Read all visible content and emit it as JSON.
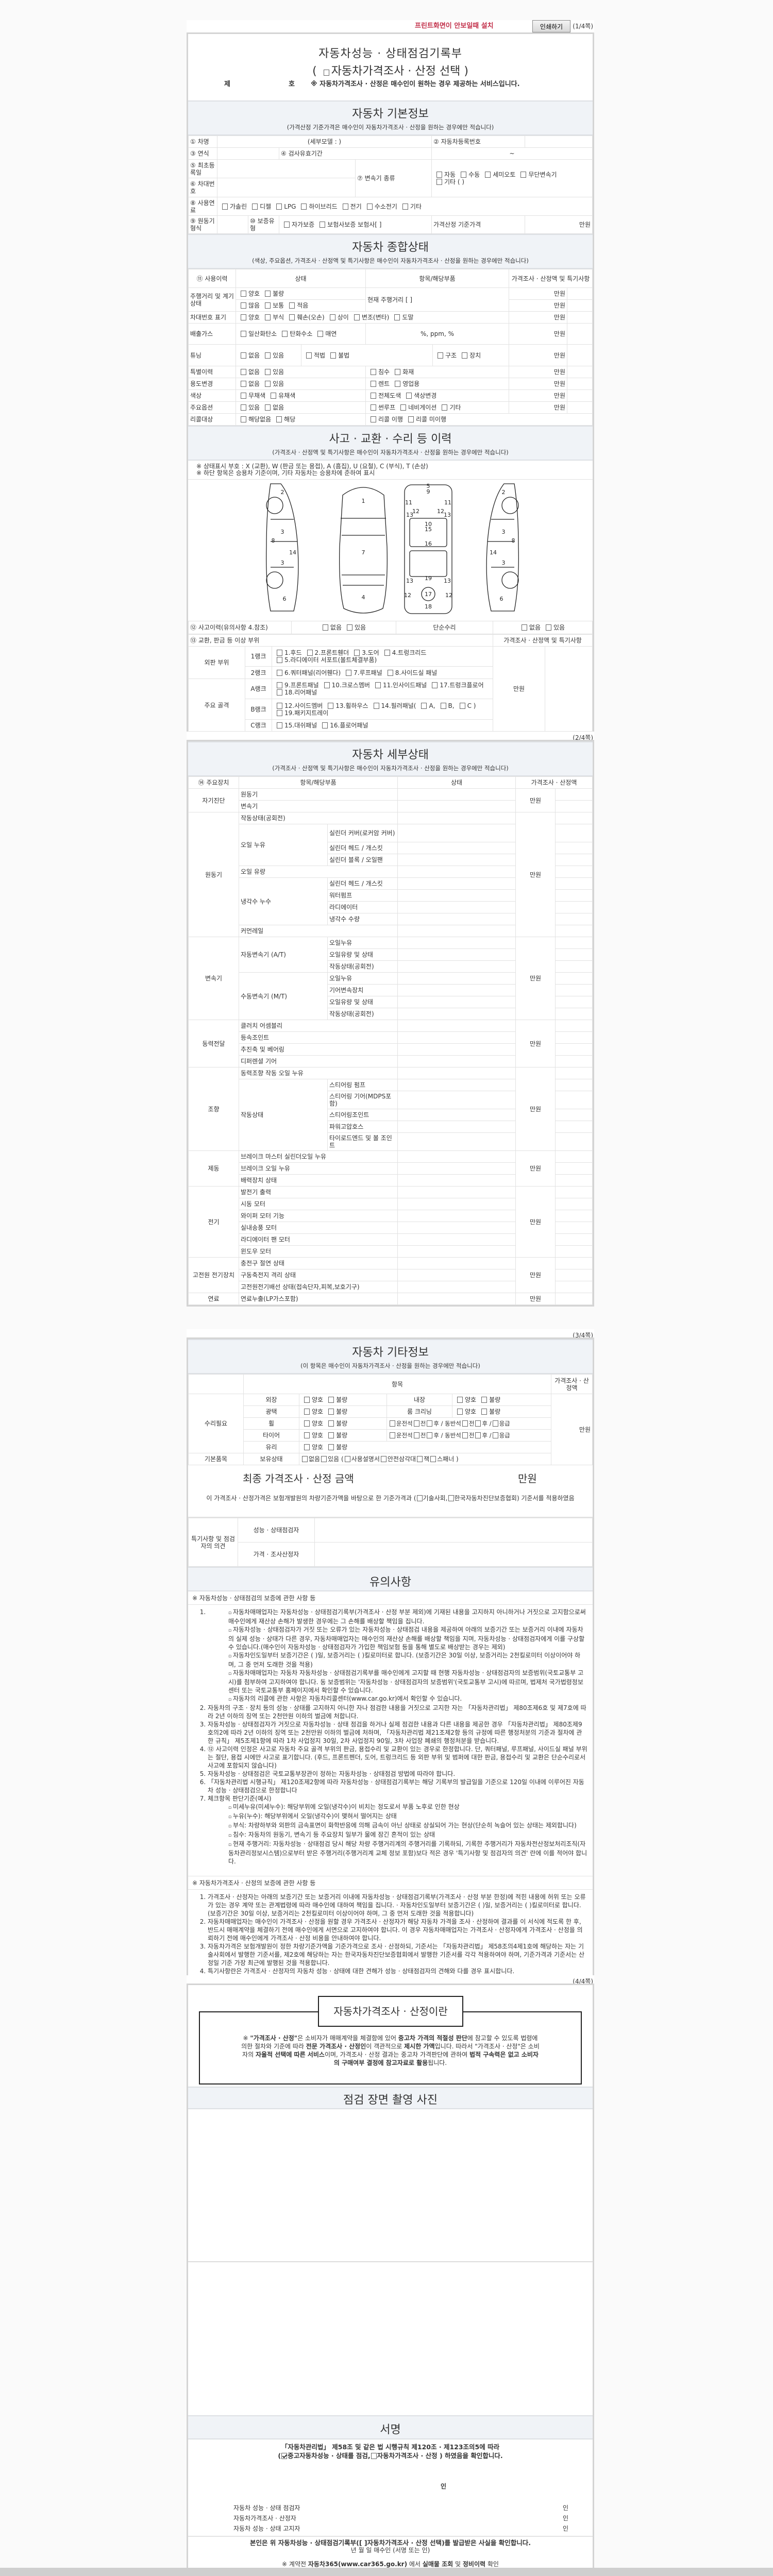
{
  "topbar": {
    "notice": "프린트화면이 안보일때 설치",
    "print_button": "인쇄하기",
    "page": "(1/4쪽)"
  },
  "title": {
    "line1": "자동차성능 · 상태점검기록부",
    "open": "(",
    "line2": "자동차가격조사 · 산정 선택",
    "close": ")",
    "no_prefix": "제",
    "no_suffix": "호",
    "note": "※ 자동차가격조사 · 산정은 매수인이 원하는 경우 제공하는 서비스입니다."
  },
  "basic": {
    "title": "자동차 기본정보",
    "subtitle": "(가격산정 기준가격은 매수인이 자동차가격조사 · 산정을 원하는 경우에만 적습니다)",
    "car_name": "① 차명",
    "sub_model": "(세부모델 :                )",
    "reg_no": "② 자동차등록번호",
    "year": "③ 연식",
    "inspect_valid": "④ 검사유효기간",
    "tilde": "~",
    "first_reg": "⑤ 최초등록일",
    "vin": "⑥ 차대번호",
    "transmission": "⑦ 변속기 종류",
    "trans_opts": [
      "자동",
      "수동",
      "세미오토",
      "무단변속기",
      "기타 (              )"
    ],
    "fuel": "⑧ 사용연료",
    "fuel_opts": [
      "가솔린",
      "디젤",
      "LPG",
      "하이브리드",
      "전기",
      "수소전기",
      "기타"
    ],
    "engine": "⑨ 원동기형식",
    "warranty": "⑩ 보증유형",
    "warranty_opts": [
      "자가보증",
      "보험사보증 보험사[              ]"
    ],
    "base_price": "가격산정 기준가격",
    "unit": "만원"
  },
  "overall": {
    "title": "자동차 종합상태",
    "subtitle": "(색상, 주요옵션, 가격조사 · 산정액 및 특기사항은 매수인이 자동차가격조사 · 산정을 원하는 경우에만 적습니다)",
    "h_history": "⑪ 사용이력",
    "h_status": "상태",
    "h_item": "항목/해당부품",
    "h_price": "가격조사 · 산정액 및 특기사항",
    "unit": "만원",
    "mileage": {
      "label": "주행거리 및 계기상태",
      "opts_a": [
        "양호",
        "불량"
      ],
      "opts_b": [
        "많음",
        "보통",
        "적음"
      ],
      "current": "현재 주행거리 [                    ]"
    },
    "vin_mark": {
      "label": "차대번호 표기",
      "opts": [
        "양호",
        "부식",
        "훼손(오손)",
        "상이",
        "변조(변타)",
        "도말"
      ]
    },
    "emission": {
      "label": "배출가스",
      "opts": [
        "일산화탄소",
        "탄화수소",
        "매연"
      ],
      "values": "%,        ppm,        %"
    },
    "tuning": {
      "label": "튜닝",
      "opts": [
        "없음",
        "있음"
      ],
      "opts_b": [
        "적법",
        "불법"
      ],
      "opts_c": [
        "구조",
        "장치"
      ]
    },
    "special": {
      "label": "특별이력",
      "opts": [
        "없음",
        "있음"
      ],
      "opts_b": [
        "침수",
        "화재"
      ]
    },
    "usage": {
      "label": "용도변경",
      "opts": [
        "없음",
        "있음"
      ],
      "opts_b": [
        "렌트",
        "영업용"
      ]
    },
    "color": {
      "label": "색상",
      "opts": [
        "무채색",
        "유채색"
      ],
      "opts_b": [
        "전체도색",
        "색상변경"
      ]
    },
    "options": {
      "label": "주요옵션",
      "opts": [
        "있음",
        "없음"
      ],
      "opts_b": [
        "썬루프",
        "네비게이션",
        "기타"
      ]
    },
    "recall": {
      "label": "리콜대상",
      "opts": [
        "해당없음",
        "해당"
      ],
      "opts_b": [
        "리콜 이행",
        "리콜 미이행"
      ]
    }
  },
  "accident": {
    "title": "사고 · 교환 · 수리 등 이력",
    "subtitle": "(가격조사 · 산정액 및 특기사항은 매수인이 자동차가격조사 · 산정을 원하는 경우에만 적습니다)",
    "legend1": "※ 상태표시 부호 : X (교환), W (판금 또는 용접), A (흠집), U (요철), C (부식), T (손상)",
    "legend2": "※ 하단 항목은 승용차 기준이며, 기타 자동차는 승용차에 준하여 표시",
    "part_numbers": [
      "1",
      "2",
      "3",
      "4",
      "5",
      "6",
      "7",
      "8",
      "9",
      "10",
      "11",
      "12",
      "13",
      "14",
      "15",
      "16",
      "17",
      "18",
      "19"
    ],
    "history": "⑫ 사고이력(유의사항 4.참조)",
    "history_opts": [
      "없음",
      "있음"
    ],
    "simple": "단순수리",
    "simple_opts": [
      "없음",
      "있음"
    ],
    "parts_label": "⑬ 교환, 판금 등 이상 부위",
    "parts_price": "가격조사 · 산정액 및 특기사항",
    "unit": "만원",
    "outer": "외판 부위",
    "frame": "주요 골격",
    "ranks": [
      {
        "rank": "1랭크",
        "opts": [
          "1.후드",
          "2.프론트휀더",
          "3.도어",
          "4.트렁크리드",
          "5.라디에이터 서포트(볼트체결부품)"
        ]
      },
      {
        "rank": "2랭크",
        "opts": [
          "6.쿼터패널(리어휀다)",
          "7.루프패널",
          "8.사이드실 패널"
        ]
      },
      {
        "rank": "A랭크",
        "opts": [
          "9.프론트패널",
          "10.크로스멤버",
          "11.인사이드패널",
          "17.트렁크플로어",
          "18.리어패널"
        ]
      },
      {
        "rank": "B랭크",
        "opts": [
          "12.사이드멤버",
          "13.휠하우스",
          "14.필러패널(",
          "A,",
          "B,",
          "C )",
          "19.패키지트레이"
        ]
      },
      {
        "rank": "C랭크",
        "opts": [
          "15.대쉬패널",
          "16.플로어패널"
        ]
      }
    ]
  },
  "page2": "(2/4쪽)",
  "detail": {
    "title": "자동차 세부상태",
    "subtitle": "(가격조사 · 산정액 및 특기사항은 매수인이 자동차가격조사 · 산정을 원하는 경우에만 적습니다)",
    "h_device": "⑭ 주요장치",
    "h_item": "항목/해당부품",
    "h_status": "상태",
    "h_price": "가격조사 · 산정액",
    "unit": "만원",
    "groups": [
      {
        "name": "자기진단",
        "rows": [
          {
            "item": "원동기",
            "opts": [
              "양호",
              "불량"
            ]
          },
          {
            "item": "변속기",
            "opts": [
              "양호",
              "불량"
            ]
          }
        ]
      },
      {
        "name": "원동기",
        "rows": [
          {
            "item": "작동상태(공회전)",
            "opts": [
              "양호",
              "불량"
            ]
          },
          {
            "item": "오일 누유",
            "subs": [
              {
                "item": "실린더 커버(로커암 커버)",
                "tall": true,
                "opts": [
                  "없음",
                  "미세누유",
                  "누유"
                ]
              },
              {
                "item": "실린더 헤드 / 개스킷",
                "opts": [
                  "없음",
                  "미세누유",
                  "누유"
                ]
              },
              {
                "item": "실린더 블록 / 오일팬",
                "opts": [
                  "없음",
                  "미세누유",
                  "누유"
                ]
              }
            ]
          },
          {
            "item": "오일 유량",
            "opts": [
              "적정",
              "부족"
            ]
          },
          {
            "item": "냉각수 누수",
            "subs": [
              {
                "item": "실린더 헤드 / 개스킷",
                "opts": [
                  "없음",
                  "미세누수",
                  "누수"
                ]
              },
              {
                "item": "워터펌프",
                "opts": [
                  "없음",
                  "미세누수",
                  "누수"
                ]
              },
              {
                "item": "라디에이터",
                "opts": [
                  "없음",
                  "미세누수",
                  "누수"
                ]
              },
              {
                "item": "냉각수 수량",
                "opts": [
                  "적정",
                  "부족"
                ]
              }
            ]
          },
          {
            "item": "커먼레일",
            "opts": [
              "양호",
              "불량"
            ]
          }
        ]
      },
      {
        "name": "변속기",
        "rows": [
          {
            "item": "자동변속기 (A/T)",
            "subs": [
              {
                "item": "오일누유",
                "opts": [
                  "없음",
                  "미세누유",
                  "누유"
                ]
              },
              {
                "item": "오일유량 및 상태",
                "opts": [
                  "적정",
                  "부족",
                  "과다"
                ]
              },
              {
                "item": "작동상태(공회전)",
                "opts": [
                  "양호",
                  "불량"
                ]
              }
            ]
          },
          {
            "item": "수동변속기 (M/T)",
            "subs": [
              {
                "item": "오일누유",
                "opts": [
                  "없음",
                  "미세누유",
                  "누유"
                ]
              },
              {
                "item": "기어변속장치",
                "opts": [
                  "양호",
                  "불량"
                ]
              },
              {
                "item": "오일유량 및 상태",
                "opts": [
                  "적정",
                  "부족",
                  "과다"
                ]
              },
              {
                "item": "작동상태(공회전)",
                "opts": [
                  "양호",
                  "불량"
                ]
              }
            ]
          }
        ]
      },
      {
        "name": "동력전달",
        "rows": [
          {
            "item": "클러치 어셈블리",
            "opts": [
              "양호",
              "불량"
            ]
          },
          {
            "item": "등속조인트",
            "opts": [
              "양호",
              "불량"
            ]
          },
          {
            "item": "추진축 및 베어링",
            "opts": [
              "양호",
              "불량"
            ]
          },
          {
            "item": "디퍼렌셜 기어",
            "opts": [
              "양호",
              "불량"
            ]
          }
        ]
      },
      {
        "name": "조향",
        "rows": [
          {
            "item": "동력조향 작동 오일 누유",
            "opts": [
              "없음",
              "미세누유",
              "누유"
            ]
          },
          {
            "item": "작동상태",
            "subs": [
              {
                "item": "스티어링 펌프",
                "opts": [
                  "양호",
                  "불량"
                ]
              },
              {
                "item": "스티어링 기어(MDPS포함)",
                "tall": true,
                "opts": [
                  "양호",
                  "불량"
                ]
              },
              {
                "item": "스티어링조인트",
                "opts": [
                  "양호",
                  "불량"
                ]
              },
              {
                "item": "파워고압호스",
                "opts": [
                  "양호",
                  "불량"
                ]
              },
              {
                "item": "타이로드엔드 및 볼 조인트",
                "tall": true,
                "opts": [
                  "양호",
                  "불량"
                ]
              }
            ]
          }
        ]
      },
      {
        "name": "제동",
        "rows": [
          {
            "item": "브레이크 마스터 실린더오일 누유",
            "opts": [
              "없음",
              "미세누유",
              "누유"
            ]
          },
          {
            "item": "브레이크 오일 누유",
            "opts": [
              "없음",
              "미세누유",
              "누유"
            ]
          },
          {
            "item": "배력장치 상태",
            "opts": [
              "양호",
              "불량"
            ]
          }
        ]
      },
      {
        "name": "전기",
        "rows": [
          {
            "item": "발전기 출력",
            "opts": [
              "양호",
              "불량"
            ]
          },
          {
            "item": "시동 모터",
            "opts": [
              "양호",
              "불량"
            ]
          },
          {
            "item": "와이퍼 모터 기능",
            "opts": [
              "양호",
              "불량"
            ]
          },
          {
            "item": "실내송풍 모터",
            "opts": [
              "양호",
              "불량"
            ]
          },
          {
            "item": "라디에이터 팬 모터",
            "opts": [
              "양호",
              "불량"
            ]
          },
          {
            "item": "윈도우 모터",
            "opts": [
              "양호",
              "불량"
            ]
          }
        ]
      },
      {
        "name": "고전원 전기장치",
        "rows": [
          {
            "item": "충전구 절연 상태",
            "opts": [
              "양호",
              "불량"
            ]
          },
          {
            "item": "구동축전지 격리 상태",
            "opts": [
              "양호",
              "불량"
            ]
          },
          {
            "item": "고전원전기배선 상태(접속단자,피복,보호기구)",
            "opts": [
              "양호",
              "불량"
            ]
          }
        ]
      },
      {
        "name": "연료",
        "rows": [
          {
            "item": "연료누출(LP가스포함)",
            "opts": [
              "없음",
              "있음"
            ]
          }
        ]
      }
    ]
  },
  "page3": "(3/4쪽)",
  "other": {
    "title": "자동차 기타정보",
    "subtitle": "(이 항목은 매수인이 자동차가격조사 · 산정을 원하는 경우에만 적습니다)",
    "h_item": "항목",
    "h_price": "가격조사 · 산정액",
    "repair": "수리필요",
    "basic_items": "기본품목",
    "unit": "만원",
    "exterior": "외장",
    "interior": "내장",
    "gloss": "광택",
    "room": "룸 크리닝",
    "wheel": "휠",
    "tire": "타이어",
    "glass": "유리",
    "holding": "보유상태",
    "good_bad": [
      "양호",
      "불량"
    ],
    "pos": [
      "운전석",
      "전",
      "후 / 동반석",
      "전",
      "후 /",
      "응급"
    ],
    "holding_opts": [
      "없음",
      "있음 (",
      "사용설명서",
      "안전삼각대",
      "잭",
      "스패너 )"
    ],
    "final_label": "최종 가격조사 · 산정 금액",
    "final_unit": "만원",
    "basis_pre": "이 가격조사 · 산정가격은 보험개발원의 차량기준가액을 바탕으로 한 기준가격과 (",
    "basis_a": "기술사회,",
    "basis_b": "한국자동차진단보증협회) 기준서를 적용하였음",
    "opinion": "특기사항 및 점검자의 의견",
    "inspector": "성능 · 상태점검자",
    "appraiser": "가격 · 조사산정자"
  },
  "caution": {
    "title": "유의사항",
    "sec1": "※ 자동차성능 · 상태점검의 보증에 관한 사항 등",
    "item1_bullets": [
      "자동차매매업자는 자동차성능 · 상태점검기록부(가격조사 · 산정 부분 제외)에 기재된 내용을 고지하지 아니하거나 거짓으로 고지함으로써 매수인에게 재산상 손해가 발생한 경우에는 그 손해를 배상할 책임을 집니다.",
      "자동차성능 · 상태점검자가 거짓 또는 오류가 있는 자동차성능 · 상태점검 내용을 제공하여 아래의 보증기간 또는 보증거리 이내에 자동차의 실제 성능 · 상태가 다른 경우, 자동차매매업자는 매수인의 재산상 손해를 배상할 책임을 지며, 자동차성능 · 상태점검자에게 이를 구상할 수 있습니다.(매수인이 자동차성능 · 상태점검자가 가입한 책임보험 등을 통해 별도로 배상받는 경우는 제외)",
      "자동차인도일부터 보증기간은 (      )일, 보증거리는 (      )킬로미터로 합니다. (보증기간은 30일 이상, 보증거리는 2천킬로미터 이상이어야 하며, 그 중 먼저 도래한 것을 적용)",
      "자동차매매업자는 자동차 자동차성능 · 상태점검기록부를 매수인에게 고지할 때 현행 자동차성능 · 상태점검자의 보증범위(국토교통부 고시)를 첨부하여 고지하여야 합니다. 동 보증범위는 '자동차성능 · 상태점검자의 보증범위'(국토교통부 고시)에 따르며, 법제처 국가법령정보센터 또는 국토교통부 홈페이지에서 확인할 수 있습니다.",
      "자동차의 리콜에 관한 사항은 자동차리콜센터(www.car.go.kr)에서 확인할 수 있습니다."
    ],
    "items1": [
      "자동차의 구조 · 장치 등의 성능 · 상태를 고지하지 아니한 자나 점검한 내용을 거짓으로 고지한 자는 「자동차관리법」 제80조제6호 및 제7호에 따라 2년 이하의 징역 또는 2천만원 이하의 벌금에 처합니다.",
      "자동차성능 · 상태점검자가 거짓으로 자동차성능 · 상태 점검을 하거나 실제 점검한 내용과 다른 내용을 제공한 경우 「자동차관리법」 제80조제9호의2에 따라 2년 이하의 징역 또는 2천만원 이하의 벌금에 처하며, 「자동차관리법 제21조제2항 등의 규정에 따른 행정처분의 기준과 절차에 관한 규칙」 제5조제1항에 따라 1차 사업정지 30일, 2차 사업정지 90일, 3차 사업장 폐쇄의 행정처분을 받습니다.",
      "⑫ 사고이력 인정은 사고로 자동차 주요 골격 부위의 판금, 용접수리 및 교환이 있는 경우로 한정합니다. 단, 쿼터패널, 루프패널, 사이드실 패널 부위는 절단, 용접 시에만 사고로 표기합니다. (후드, 프론트펜더, 도어, 트렁크리드 등 외판 부위 및 범퍼에 대한 판금, 용접수리 및 교환은 단순수리로서 사고에 포함되지 않습니다)",
      "자동차성능 · 상태점검은 국토교통부장관이 정하는 자동차성능 · 상태점검 방법에 따라야 합니다.",
      "「자동차관리법 시행규칙」 제120조제2항에 따라 자동차성능 · 상태점검기록부는 해당 기록부의 발급일을 기준으로 120일 이내에 이루어진 자동차 성능 · 상태점검으로 한정합니다",
      "체크항목 판단기준(예시)"
    ],
    "item7_bullets": [
      "미세누유(미세누수): 해당부위에 오일(냉각수)이 비치는 정도로서 부품 노후로 인한 현상",
      "누유(누수): 해당부위에서 오일(냉각수)이 맺혀서 떨어지는 상태",
      "부식: 차량하부와 외판의 금속표면이 화학반응에 의해 금속이 아닌 상태로 상실되어 가는 현상(단순히 녹슬어 있는 상태는 제외합니다)",
      "침수: 자동차의 원동기, 변속기 등 주요장치 일부가 물에 잠긴 흔적이 있는 상태",
      "현재 주행거리: 자동차성능 · 상태점검 당시 해당 차량 주행거리계의 주행거리를 기록하되, 기록한 주행거리가 자동차전산정보처리조직(자동차관리정보시스템)으로부터 받은 주행거리(주행거리계 교체 정보 포함)보다 적은 경우 '특기사항 및 점검자의 의견' 란에 이를 적어야 합니다."
    ],
    "sec2": "※ 자동차가격조사 · 산정의 보증에 관한 사항 등",
    "items2": [
      "가격조사 · 산정자는 아래의 보증기간 또는 보증거리 이내에 자동차성능 · 상태점검기록부(가격조사 · 산정 부분 한정)에 적힌 내용에 허위 또는 오류가 있는 경우 계약 또는 관계법령에 따라 매수인에 대하여 책임을 집니다. · 자동차인도일부터 보증기간은 (      )일, 보증거리는 (      )킬로미터로 합니다. (보증기간은 30일 이상, 보증거리는 2천킬로미터 이상이어야 하며, 그 중 먼저 도래한 것을 적용합니다)",
      "자동차매매업자는 매수인이 가격조사 · 산정을 원할 경우 가격조사 · 산정자가 해당 자동차 가격을 조사 · 산정하여 결과를 이 서식에 적도록 한 후, 반드시 매매계약을 체결하기 전에 매수인에게 서면으로 고지하여야 합니다. 이 경우 자동차매매업자는 가격조사 · 산정자에게 가격조사 · 산정을 의뢰하기 전에 매수인에게 가격조사 · 산정 비용을 안내하여야 합니다.",
      "자동차가격은 보험개발원이 정한 차량기준가액을 기준가격으로 조사 · 산정하되, 기준서는 「자동차관리법」 제58조의4제1호에 해당하는 자는 기술사회에서 발행한 기준서를, 제2호에 해당하는 자는 한국자동차진단보증협회에서 발행한 기준서를 각각 적용하여야 하며, 기준가격과 기준서는 산정일 기준 가장 최근에 발행된 것을 적용합니다.",
      "특기사항란은 가격조사 · 산정자의 자동차 성능 · 상태에 대한 견해가 성능 · 상태점검자의 견해와 다를 경우 표시합니다."
    ]
  },
  "page4": "(4/4쪽)",
  "about": {
    "title": "자동차가격조사 · 산정이란",
    "segments": [
      {
        "t": "※ ",
        "b": false
      },
      {
        "t": "\"가격조사 · 산정\"",
        "b": true
      },
      {
        "t": "은 소비자가 매매계약을 체결함에 있어 ",
        "b": false
      },
      {
        "t": "중고차 가격의 적절성 판단",
        "b": true
      },
      {
        "t": "에 참고할 수 있도록 법령에 의한 절차와 기준에 따라 ",
        "b": false
      },
      {
        "t": "전문 가격조사 · 산정인",
        "b": true
      },
      {
        "t": "이 객관적으로 ",
        "b": false
      },
      {
        "t": "제시한 가액",
        "b": true
      },
      {
        "t": "입니다. 따라서 \"가격조사 · 산정\"은 소비자의 ",
        "b": false
      },
      {
        "t": "자율적 선택에 따른 서비스",
        "b": true
      },
      {
        "t": "이며, 가격조사 · 산정 결과는 중고차 가격판단에 관하여 ",
        "b": false
      },
      {
        "t": "법적 구속력은 없고 소비자의 구매여부 결정에 참고자료로 활용",
        "b": true
      },
      {
        "t": "됩니다.",
        "b": false
      }
    ]
  },
  "photo": {
    "title": "점검 장면 촬영 사진"
  },
  "sign": {
    "title": "서명",
    "law": "「자동차관리법」 제58조 및 같은 법 시행규칙 제120조 · 제123조의5에 따라",
    "confirm_open": "(",
    "confirm_a": "중고자동차성능 · 상태를 점검,",
    "confirm_b": "자동차가격조사  ·  산정 ) 하였음을 확인합니다.",
    "seal": "인",
    "signers": [
      {
        "role": "자동차 성능 · 상태 점검자",
        "seal": "인"
      },
      {
        "role": "자동차가격조사  ·  산정자",
        "seal": "인"
      },
      {
        "role": "자동차 성능 · 상태 고지자",
        "seal": "인"
      }
    ],
    "receipt": "본인은 위 자동차성능  ·  상태점검기록부([   ]자동차가격조사  ·  산정 선택)를 발급받은 사실을 확인합니다.",
    "date_line": "년      월      일       매수인                    (서명 또는 인)",
    "footer_pre": "※ 계약전 ",
    "footer_b1": "자동차365(www.car365.go.kr)",
    "footer_mid": " 에서 ",
    "footer_b2": "실매물 조회",
    "footer_mid2": " 및 ",
    "footer_b3": "정비이력",
    "footer_post": " 확인"
  },
  "colors": {
    "notice": "#c2304a",
    "section_bg": "#f0f3f7",
    "border": "#d4d4d4"
  }
}
